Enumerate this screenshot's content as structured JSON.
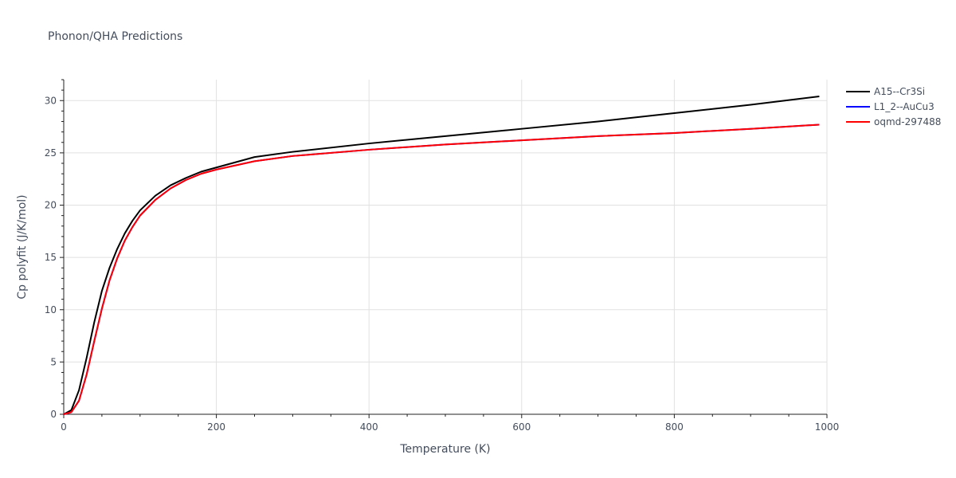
{
  "chart_data": {
    "type": "line",
    "title": "Phonon/QHA Predictions",
    "xlabel": "Temperature (K)",
    "ylabel": "Cp polyfit (J/K/mol)",
    "xlim": [
      0,
      1000
    ],
    "ylim": [
      0,
      32
    ],
    "xticks": [
      0,
      200,
      400,
      600,
      800,
      1000
    ],
    "yticks": [
      0,
      5,
      10,
      15,
      20,
      25,
      30
    ],
    "grid": true,
    "legend_position": "top-right",
    "series": [
      {
        "name": "A15--Cr3Si",
        "color": "#000000",
        "x": [
          0,
          10,
          20,
          30,
          40,
          50,
          60,
          70,
          80,
          90,
          100,
          120,
          140,
          160,
          180,
          200,
          250,
          300,
          400,
          500,
          600,
          700,
          800,
          900,
          990
        ],
        "y": [
          0,
          0.4,
          2.3,
          5.4,
          8.8,
          11.8,
          14.0,
          15.8,
          17.3,
          18.5,
          19.5,
          20.9,
          21.9,
          22.6,
          23.2,
          23.6,
          24.6,
          25.1,
          25.9,
          26.6,
          27.3,
          28.0,
          28.8,
          29.6,
          30.4
        ]
      },
      {
        "name": "L1_2--AuCu3",
        "color": "#0000ff",
        "x": [
          0,
          10,
          20,
          30,
          40,
          50,
          60,
          70,
          80,
          90,
          100,
          120,
          140,
          160,
          180,
          200,
          250,
          300,
          400,
          500,
          600,
          700,
          800,
          900,
          990
        ],
        "y": [
          0,
          0.2,
          1.3,
          3.8,
          7.0,
          10.1,
          12.8,
          14.9,
          16.6,
          17.9,
          19.0,
          20.5,
          21.6,
          22.4,
          23.0,
          23.4,
          24.2,
          24.7,
          25.3,
          25.8,
          26.2,
          26.6,
          26.9,
          27.3,
          27.7
        ]
      },
      {
        "name": "oqmd-297488",
        "color": "#ff0000",
        "x": [
          0,
          10,
          20,
          30,
          40,
          50,
          60,
          70,
          80,
          90,
          100,
          120,
          140,
          160,
          180,
          200,
          250,
          300,
          400,
          500,
          600,
          700,
          800,
          900,
          990
        ],
        "y": [
          0,
          0.2,
          1.3,
          3.8,
          7.0,
          10.1,
          12.8,
          14.9,
          16.6,
          17.9,
          19.0,
          20.5,
          21.6,
          22.4,
          23.0,
          23.4,
          24.2,
          24.7,
          25.3,
          25.8,
          26.2,
          26.6,
          26.9,
          27.3,
          27.7
        ]
      }
    ]
  }
}
